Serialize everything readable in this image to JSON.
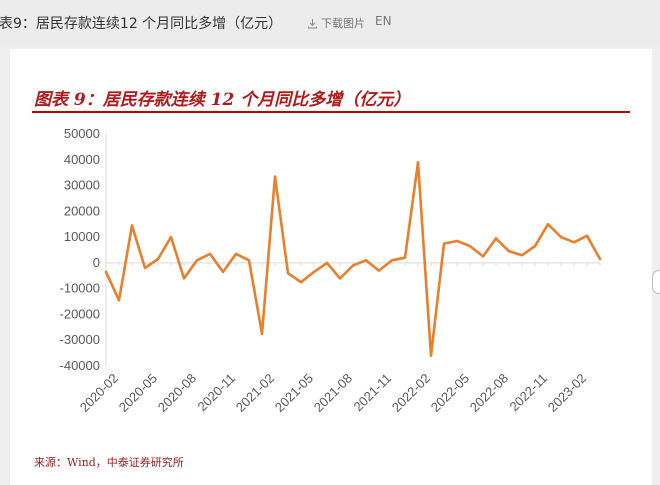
{
  "header": {
    "title": "表9：居民存款连续12 个月同比多增（亿元）",
    "download_label": "下载图片",
    "lang_label": "EN"
  },
  "figure": {
    "title": "图表 9：居民存款连续 12 个月同比多增（亿元）",
    "source": "来源：Wind，中泰证券研究所"
  },
  "colors": {
    "line": "#e87f2c",
    "accent": "#c00000"
  },
  "chart_data": {
    "type": "line",
    "x": [
      "2020-01",
      "2020-02",
      "2020-03",
      "2020-04",
      "2020-05",
      "2020-06",
      "2020-07",
      "2020-08",
      "2020-09",
      "2020-10",
      "2020-11",
      "2020-12",
      "2021-01",
      "2021-02",
      "2021-03",
      "2021-04",
      "2021-05",
      "2021-06",
      "2021-07",
      "2021-08",
      "2021-09",
      "2021-10",
      "2021-11",
      "2021-12",
      "2022-01",
      "2022-02",
      "2022-03",
      "2022-04",
      "2022-05",
      "2022-06",
      "2022-07",
      "2022-08",
      "2022-09",
      "2022-10",
      "2022-11",
      "2022-12",
      "2023-01",
      "2023-02",
      "2023-03"
    ],
    "series": [
      {
        "values": [
          -3500,
          -14500,
          14500,
          -2000,
          1500,
          10000,
          -6000,
          1000,
          3500,
          -3500,
          3500,
          1000,
          -27500,
          33500,
          -4000,
          -7500,
          -3500,
          0,
          -6000,
          -1000,
          1000,
          -3000,
          1000,
          2000,
          39000,
          -36000,
          7500,
          8500,
          6500,
          2500,
          9500,
          4500,
          3000,
          6500,
          15000,
          10000,
          8000,
          10500,
          1500
        ]
      }
    ],
    "xticks": [
      "2020-02",
      "2020-05",
      "2020-08",
      "2020-11",
      "2021-02",
      "2021-05",
      "2021-08",
      "2021-11",
      "2022-02",
      "2022-05",
      "2022-08",
      "2022-11",
      "2023-02"
    ],
    "yticks": [
      50000,
      40000,
      30000,
      20000,
      10000,
      0,
      -10000,
      -20000,
      -30000,
      -40000
    ],
    "ylim": [
      -40000,
      50000
    ],
    "grid": false,
    "legend": "none"
  }
}
